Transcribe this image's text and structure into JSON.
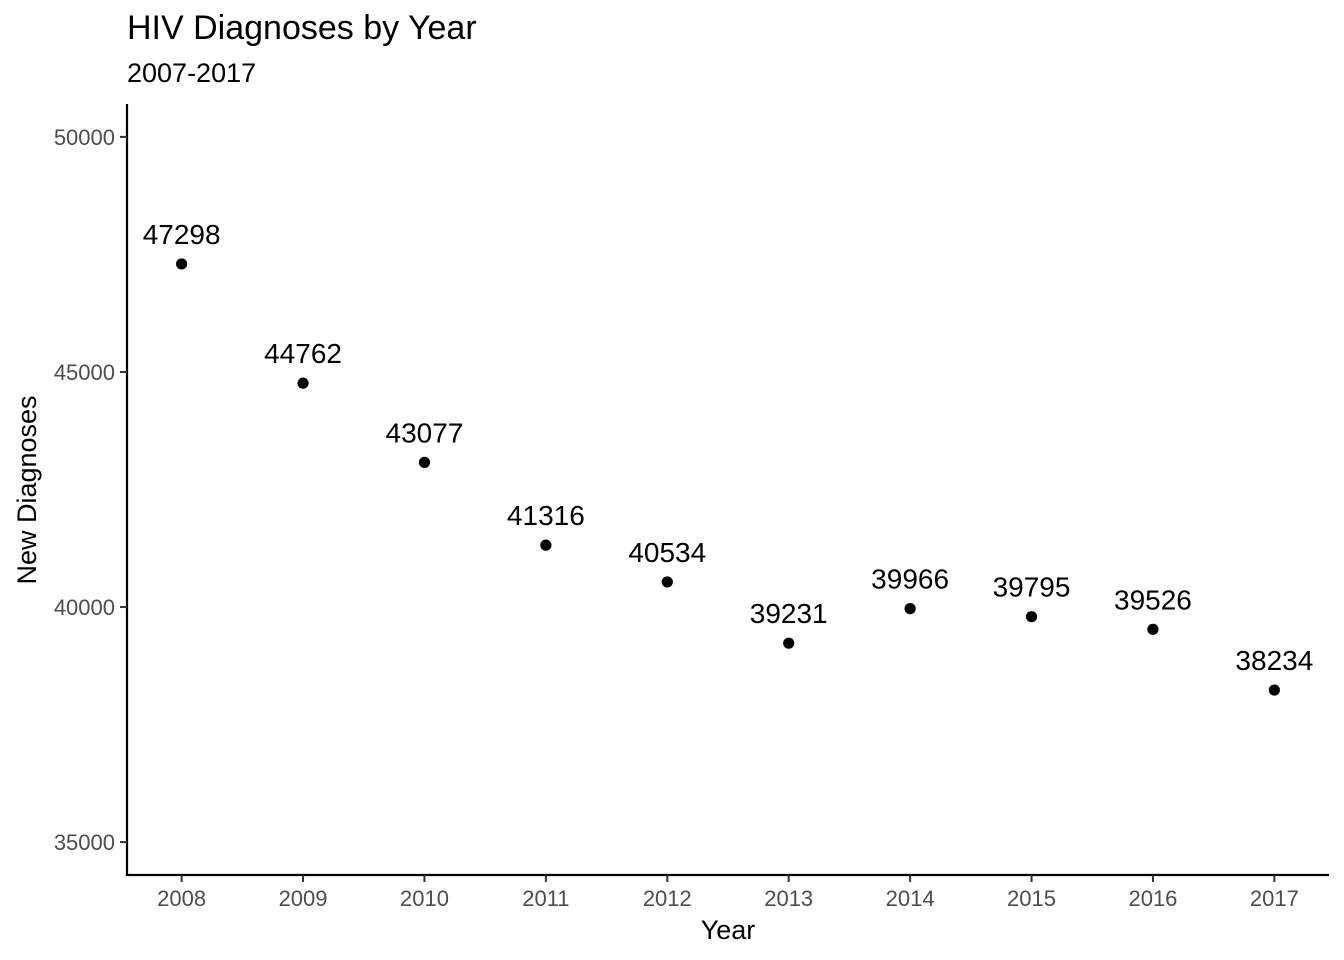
{
  "chart_data": {
    "type": "scatter",
    "title": "HIV Diagnoses by Year",
    "subtitle": "2007-2017",
    "xlabel": "Year",
    "ylabel": "New Diagnoses",
    "x": [
      2008,
      2009,
      2010,
      2011,
      2012,
      2013,
      2014,
      2015,
      2016,
      2017
    ],
    "y": [
      47298,
      44762,
      43077,
      41316,
      40534,
      39231,
      39966,
      39795,
      39526,
      38234
    ],
    "data_labels": [
      "47298",
      "44762",
      "43077",
      "41316",
      "40534",
      "39231",
      "39966",
      "39795",
      "39526",
      "38234"
    ],
    "x_ticks": [
      "2008",
      "2009",
      "2010",
      "2011",
      "2012",
      "2013",
      "2014",
      "2015",
      "2016",
      "2017"
    ],
    "y_ticks": [
      35000,
      40000,
      45000,
      50000
    ],
    "y_tick_labels": [
      "35000",
      "40000",
      "45000",
      "50000"
    ],
    "ylim": [
      34300,
      50700
    ],
    "xlim": [
      2007.55,
      2017.45
    ],
    "grid": false,
    "legend": "none",
    "point_color": "#000000"
  }
}
